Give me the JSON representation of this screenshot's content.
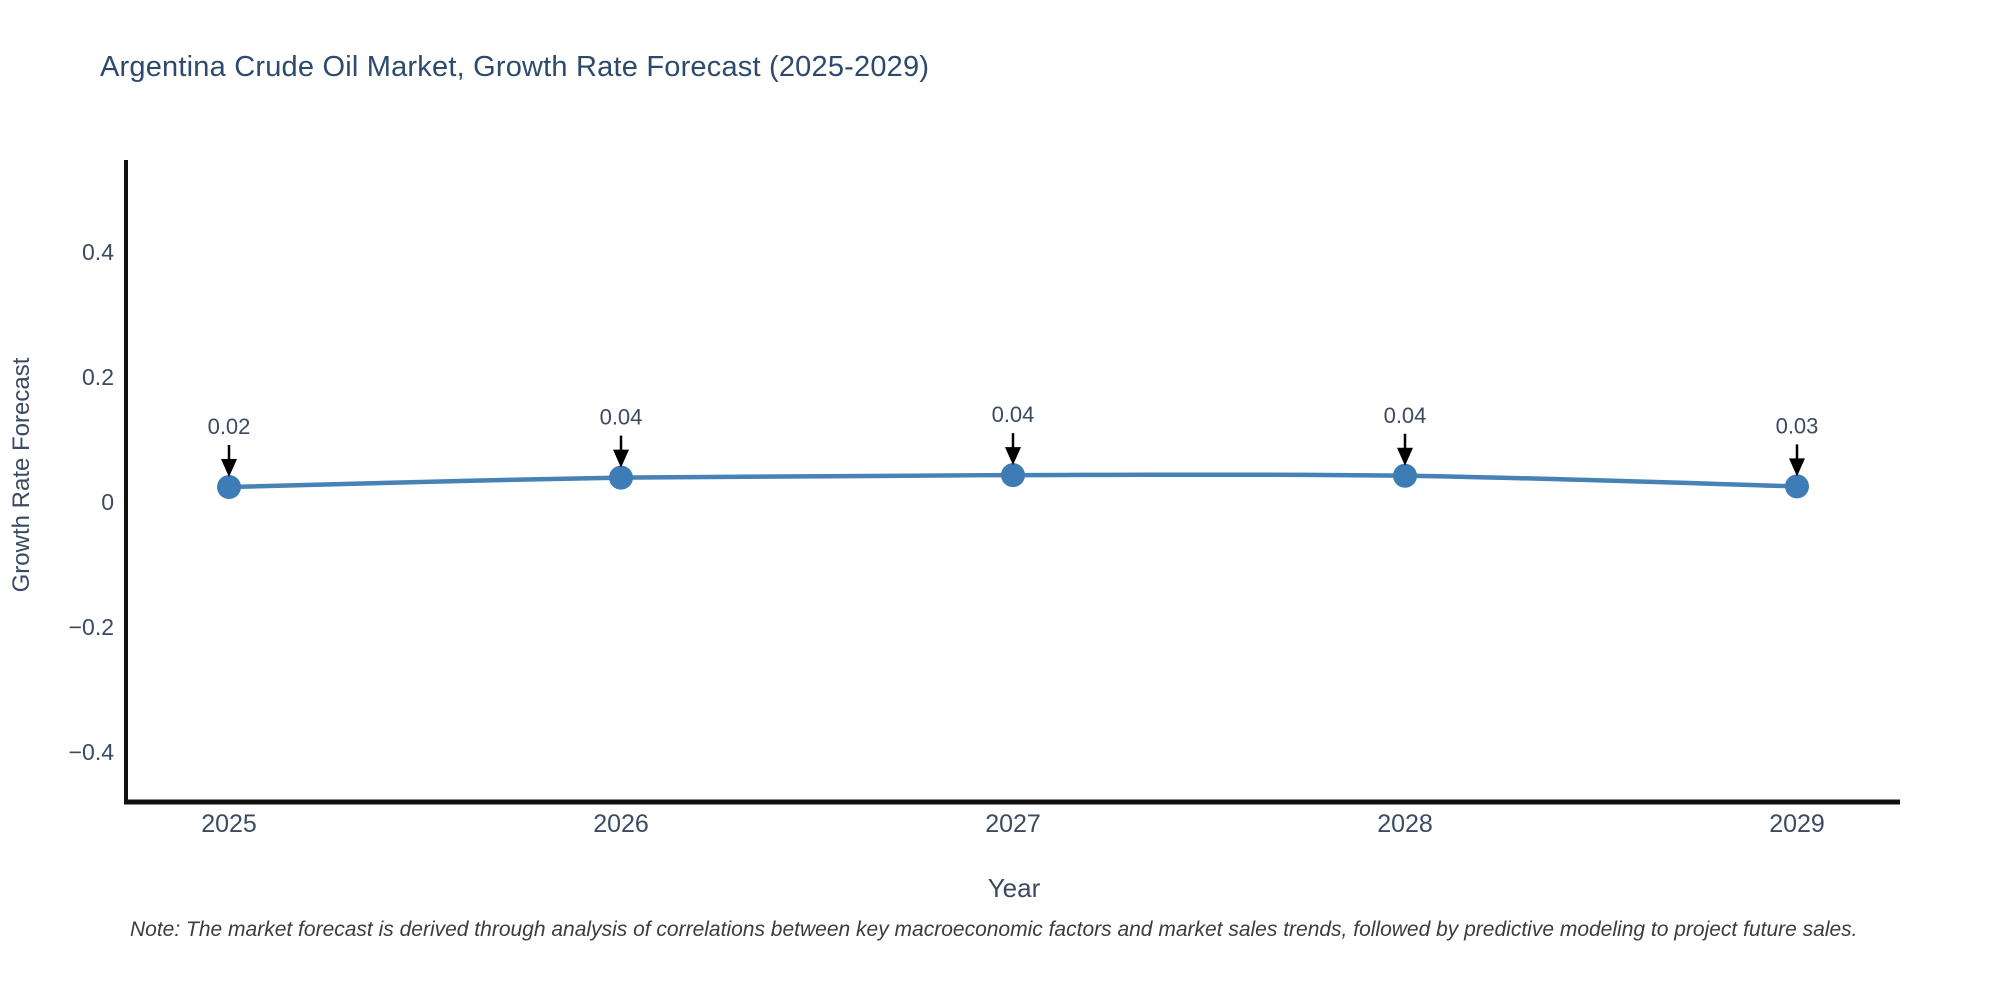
{
  "header": {
    "title": "Argentina Crude Oil Market, Growth Rate Forecast (2025-2029)"
  },
  "chart_data": {
    "type": "line",
    "title": "Argentina Crude Oil Market, Growth Rate Forecast (2025-2029)",
    "xlabel": "Year",
    "ylabel": "Growth Rate Forecast",
    "categories": [
      "2025",
      "2026",
      "2027",
      "2028",
      "2029"
    ],
    "values": [
      0.02,
      0.04,
      0.04,
      0.04,
      0.03
    ],
    "point_labels": [
      "0.02",
      "0.04",
      "0.04",
      "0.04",
      "0.03"
    ],
    "plot_values": [
      0.024,
      0.039,
      0.043,
      0.042,
      0.025
    ],
    "yticks": [
      0.4,
      0.2,
      0,
      -0.2,
      -0.4
    ],
    "ylim": [
      -0.49,
      0.55
    ],
    "grid": false,
    "legend": "none",
    "smooth_line": true,
    "colors": {
      "line": "#4682b4",
      "marker": "#3d7cb5",
      "axis": "#111111",
      "tick_text": "#3b4a63",
      "annotation_text": "#3b4a63",
      "annotation_arrow": "#000000"
    }
  },
  "footer": {
    "note": "Note: The market forecast is derived through analysis of correlations between key macroeconomic factors and market sales trends, followed by predictive modeling to project future sales."
  }
}
